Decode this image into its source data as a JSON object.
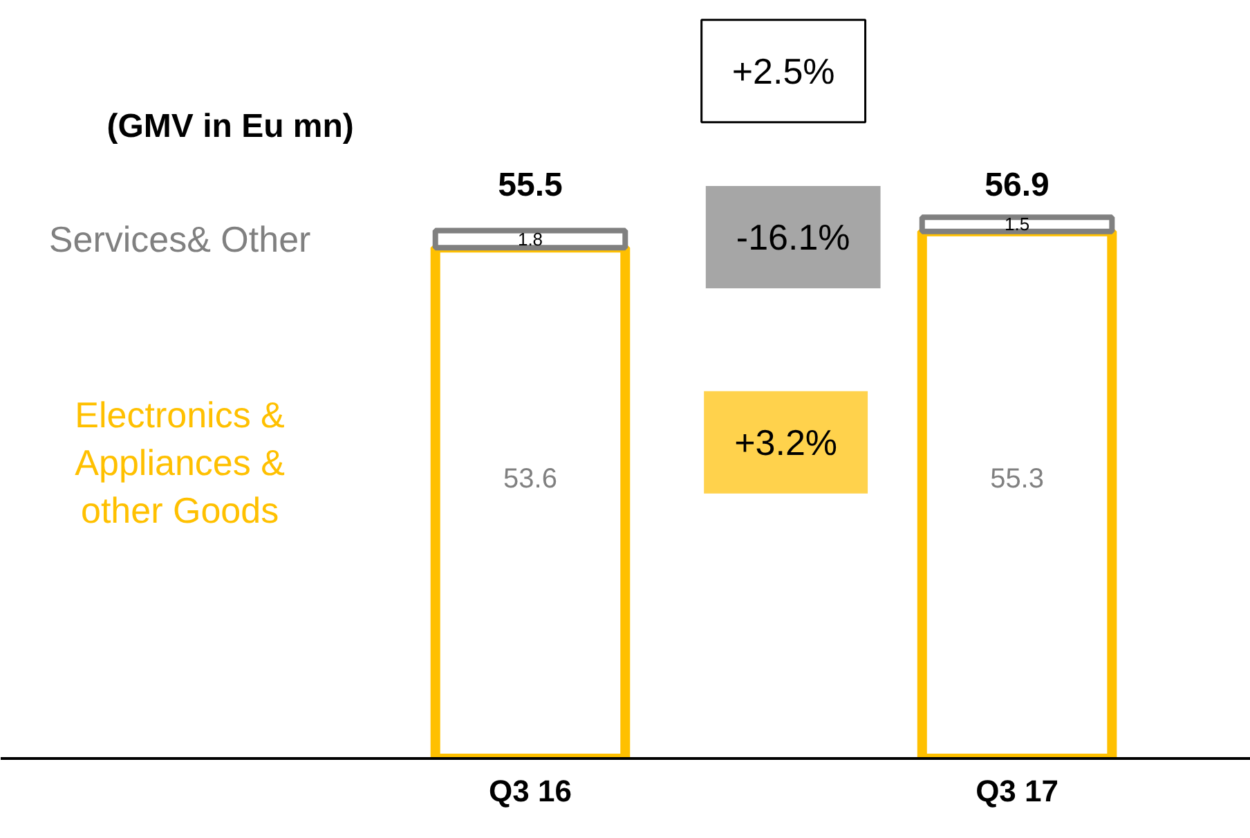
{
  "chart_data": {
    "type": "bar",
    "stacked": true,
    "title": "(GMV in Eu mn)",
    "categories": [
      "Q3 16",
      "Q3 17"
    ],
    "series": [
      {
        "name": "Electronics & Appliances & other Goods",
        "color": "#ffc000",
        "values": [
          53.6,
          55.3
        ]
      },
      {
        "name": "Services& Other",
        "color": "#808080",
        "values": [
          1.8,
          1.5
        ]
      }
    ],
    "data_labels": true,
    "totals": [
      "55.5",
      "56.9"
    ],
    "annotations": [
      "+2.5%",
      "-16.1%",
      "+3.2%"
    ]
  }
}
